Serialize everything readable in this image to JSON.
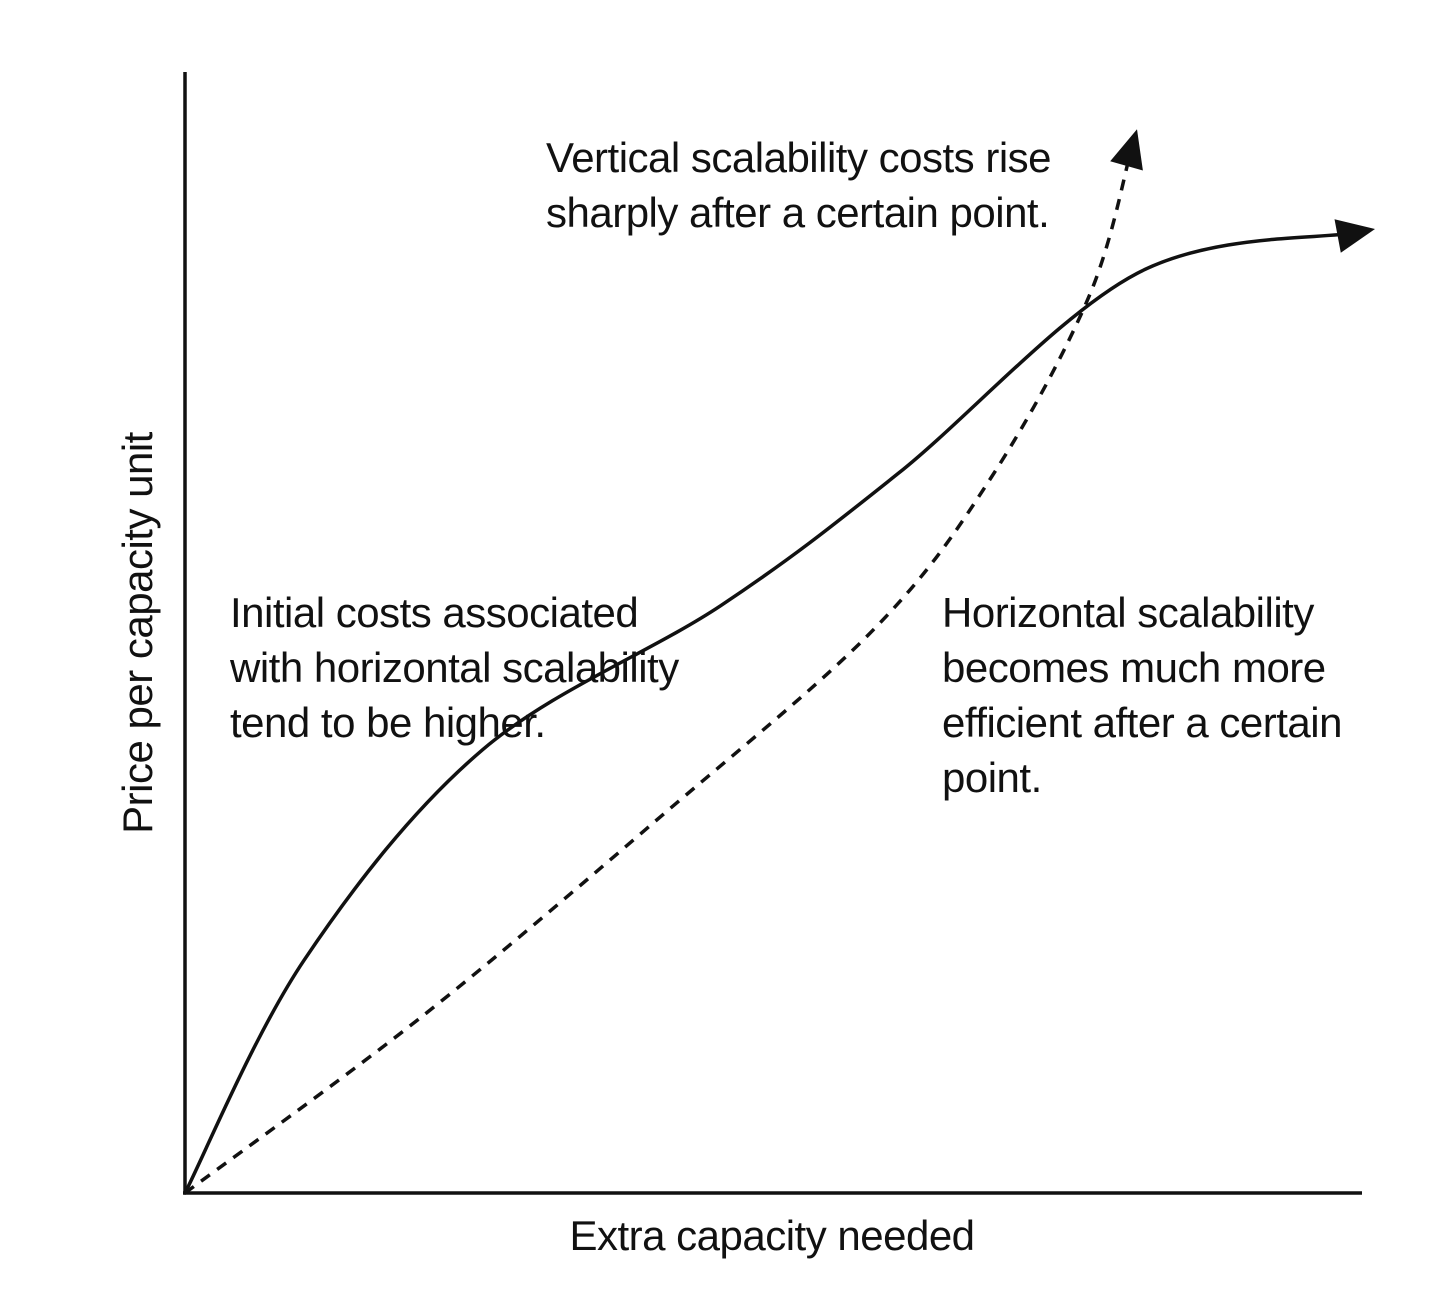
{
  "chart_data": {
    "type": "line",
    "title": "",
    "xlabel": "Extra capacity needed",
    "ylabel": "Price per capacity unit",
    "ticks": "none",
    "grid": false,
    "legend": "none",
    "xlim": [
      0,
      100
    ],
    "ylim": [
      0,
      100
    ],
    "series": [
      {
        "style": "solid",
        "points": [
          [
            0,
            0
          ],
          [
            10,
            21
          ],
          [
            25,
            40
          ],
          [
            45,
            53
          ],
          [
            60,
            65
          ],
          [
            80,
            83
          ],
          [
            100,
            87
          ]
        ]
      },
      {
        "style": "dashed",
        "points": [
          [
            0,
            0
          ],
          [
            20,
            16
          ],
          [
            40,
            34
          ],
          [
            58,
            51
          ],
          [
            68,
            65
          ],
          [
            76,
            81
          ],
          [
            80,
            96
          ]
        ]
      }
    ],
    "annotations": [
      {
        "id": "vertical",
        "lines": [
          "Vertical scalability costs rise",
          "sharply after a certain point."
        ]
      },
      {
        "id": "initial",
        "lines": [
          "Initial costs associated",
          "with horizontal scalability",
          "tend to be higher."
        ]
      },
      {
        "id": "horizontal",
        "lines": [
          "Horizontal scalability",
          "becomes much more",
          "efficient after a certain",
          "point."
        ]
      }
    ]
  }
}
